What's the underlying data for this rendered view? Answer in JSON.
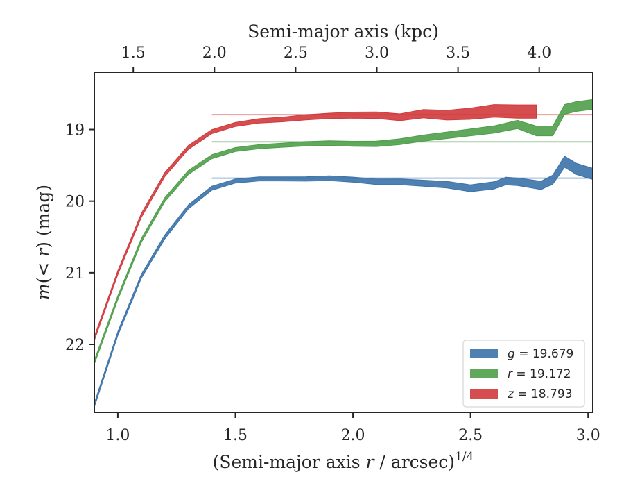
{
  "chart_data": {
    "type": "area",
    "title": "",
    "xlabel": "(Semi-major axis r / arcsec)^1/4",
    "xlabel_parts": {
      "prefix": "(Semi-major axis ",
      "var": "r",
      "mid": " / arcsec)",
      "sup": "1/4"
    },
    "ylabel": "m(<r) (mag)",
    "ylabel_parts": {
      "prefix": "m",
      "rest": "(< ",
      "var2": "r",
      "suffix": ") (mag)"
    },
    "top_xlabel": "Semi-major axis (kpc)",
    "xlim": [
      0.9,
      3.02
    ],
    "ylim": [
      22.95,
      18.2
    ],
    "y_inverted": true,
    "top_xlim_kpc": [
      1.26,
      4.33
    ],
    "x_ticks": [
      1.0,
      1.5,
      2.0,
      2.5,
      3.0
    ],
    "x_tick_labels": [
      "1.0",
      "1.5",
      "2.0",
      "2.5",
      "3.0"
    ],
    "y_ticks": [
      19,
      20,
      21,
      22
    ],
    "y_tick_labels": [
      "19",
      "20",
      "21",
      "22"
    ],
    "top_ticks_kpc": [
      1.5,
      2.0,
      2.5,
      3.0,
      3.5,
      4.0
    ],
    "top_tick_labels": [
      "1.5",
      "2.0",
      "2.5",
      "3.0",
      "3.5",
      "4.0"
    ],
    "grid": false,
    "legend_position": "lower-right",
    "series": [
      {
        "key": "g",
        "legend_var": "g",
        "legend_value": "= 19.679",
        "asymptote": 19.679,
        "color": "#3b72a8",
        "x": [
          0.9,
          1.0,
          1.1,
          1.2,
          1.3,
          1.4,
          1.5,
          1.6,
          1.7,
          1.8,
          1.9,
          2.0,
          2.1,
          2.2,
          2.3,
          2.4,
          2.5,
          2.6,
          2.65,
          2.7,
          2.8,
          2.85,
          2.9,
          2.95,
          3.02
        ],
        "y": [
          22.85,
          21.85,
          21.05,
          20.5,
          20.08,
          19.82,
          19.72,
          19.69,
          19.69,
          19.69,
          19.68,
          19.7,
          19.73,
          19.73,
          19.75,
          19.77,
          19.82,
          19.78,
          19.72,
          19.73,
          19.78,
          19.7,
          19.45,
          19.55,
          19.62
        ],
        "width": [
          0.02,
          0.02,
          0.02,
          0.02,
          0.02,
          0.02,
          0.02,
          0.02,
          0.02,
          0.025,
          0.03,
          0.035,
          0.04,
          0.045,
          0.05,
          0.055,
          0.06,
          0.065,
          0.07,
          0.07,
          0.08,
          0.09,
          0.12,
          0.12,
          0.12
        ]
      },
      {
        "key": "r",
        "legend_var": "r",
        "legend_value": "= 19.172",
        "asymptote": 19.172,
        "color": "#4e9e4a",
        "x": [
          0.9,
          1.0,
          1.1,
          1.2,
          1.3,
          1.4,
          1.5,
          1.6,
          1.7,
          1.8,
          1.9,
          2.0,
          2.1,
          2.2,
          2.3,
          2.4,
          2.5,
          2.6,
          2.7,
          2.78,
          2.85,
          2.9,
          2.95,
          3.02
        ],
        "y": [
          22.25,
          21.35,
          20.55,
          19.98,
          19.6,
          19.38,
          19.28,
          19.24,
          19.22,
          19.2,
          19.19,
          19.2,
          19.2,
          19.17,
          19.12,
          19.08,
          19.04,
          19.0,
          18.93,
          19.02,
          19.02,
          18.72,
          18.68,
          18.65
        ],
        "width": [
          0.02,
          0.02,
          0.02,
          0.02,
          0.02,
          0.02,
          0.02,
          0.02,
          0.02,
          0.025,
          0.03,
          0.035,
          0.04,
          0.045,
          0.05,
          0.055,
          0.06,
          0.065,
          0.08,
          0.1,
          0.1,
          0.1,
          0.1,
          0.1
        ]
      },
      {
        "key": "z",
        "legend_var": "z",
        "legend_value": "= 18.793",
        "asymptote": 18.793,
        "color": "#d03a3c",
        "x": [
          0.9,
          1.0,
          1.1,
          1.2,
          1.3,
          1.4,
          1.5,
          1.6,
          1.7,
          1.8,
          1.9,
          2.0,
          2.1,
          2.2,
          2.3,
          2.4,
          2.5,
          2.6,
          2.7,
          2.78
        ],
        "y": [
          21.92,
          21.0,
          20.2,
          19.63,
          19.25,
          19.03,
          18.93,
          18.88,
          18.86,
          18.83,
          18.81,
          18.8,
          18.8,
          18.83,
          18.78,
          18.8,
          18.78,
          18.74,
          18.75,
          18.75
        ],
        "width": [
          0.02,
          0.02,
          0.02,
          0.02,
          0.02,
          0.02,
          0.02,
          0.025,
          0.03,
          0.035,
          0.04,
          0.05,
          0.055,
          0.06,
          0.08,
          0.1,
          0.12,
          0.14,
          0.15,
          0.15
        ]
      }
    ]
  }
}
